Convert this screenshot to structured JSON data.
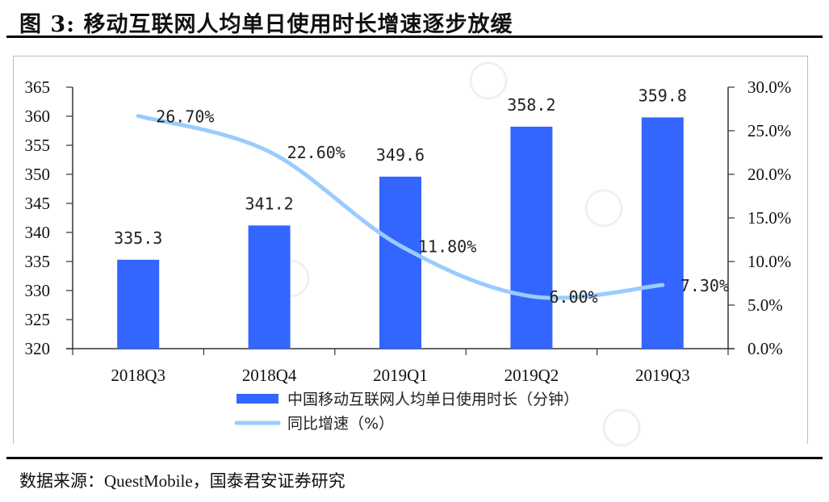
{
  "figure": {
    "title": "图 3:  移动互联网人均单日使用时长增速逐步放缓",
    "source": "数据来源：QuestMobile，国泰君安证券研究"
  },
  "chart_data": {
    "type": "bar+line",
    "title": "图 3:  移动互联网人均单日使用时长增速逐步放缓",
    "categories": [
      "2018Q3",
      "2018Q4",
      "2019Q1",
      "2019Q2",
      "2019Q3"
    ],
    "series": [
      {
        "name": "中国移动互联网人均单日使用时长（分钟）",
        "type": "bar",
        "axis": "left",
        "color": "#3366ff",
        "values": [
          335.3,
          341.2,
          349.6,
          358.2,
          359.8
        ],
        "labels": [
          "335.3",
          "341.2",
          "349.6",
          "358.2",
          "359.8"
        ]
      },
      {
        "name": "同比增速（%）",
        "type": "line",
        "axis": "right",
        "color": "#99ccff",
        "smooth": true,
        "values": [
          26.7,
          22.6,
          11.8,
          6.0,
          7.3
        ],
        "labels": [
          "26.70%",
          "22.60%",
          "11.80%",
          "6.00%",
          "7.30%"
        ]
      }
    ],
    "y_left": {
      "ylim": [
        320,
        365
      ],
      "ticks": [
        "320",
        "325",
        "330",
        "335",
        "340",
        "345",
        "350",
        "355",
        "360",
        "365"
      ]
    },
    "y_right": {
      "ylim": [
        0,
        30
      ],
      "ticks": [
        "0.0%",
        "5.0%",
        "10.0%",
        "15.0%",
        "20.0%",
        "25.0%",
        "30.0%"
      ]
    },
    "xlabel": "",
    "ylabel": "",
    "grid": false,
    "legend": "bottom-center"
  }
}
